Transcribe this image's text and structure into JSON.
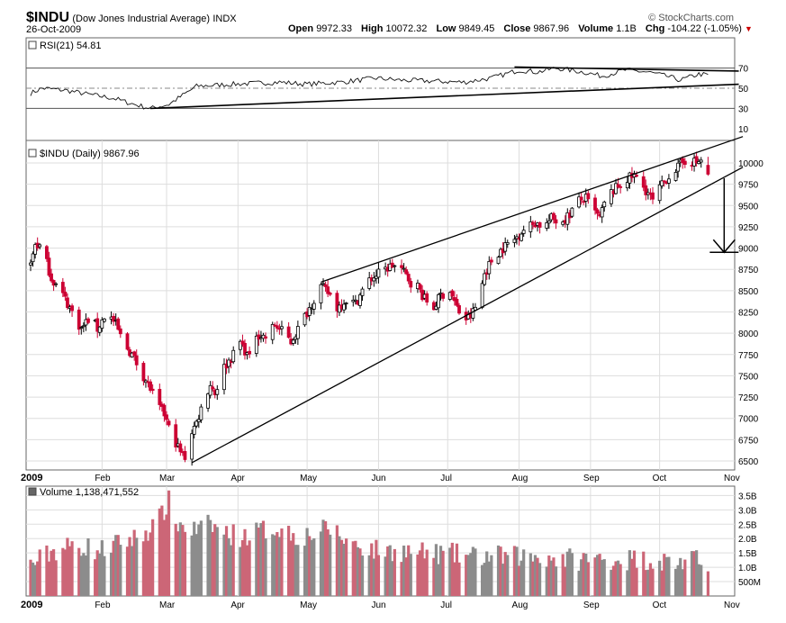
{
  "header": {
    "symbol": "$INDU",
    "name": "(Dow Jones Industrial Average)",
    "exchange": "INDX",
    "date": "26-Oct-2009",
    "brand": "© StockCharts.com",
    "open_label": "Open",
    "open": "9972.33",
    "high_label": "High",
    "high": "10072.32",
    "low_label": "Low",
    "low": "9849.45",
    "close_label": "Close",
    "close": "9867.96",
    "volume_label": "Volume",
    "volume": "1.1B",
    "chg_label": "Chg",
    "chg": "-104.22 (-1.05%)",
    "down_marker": "▼"
  },
  "colors": {
    "up": "#000000",
    "down": "#cc0033",
    "vol_up": "#8c8c8c",
    "vol_down": "#cc6677",
    "grid": "#dddddd",
    "frame": "#666666"
  },
  "chart_data": [
    {
      "type": "line",
      "panel": "rsi",
      "label": "RSI(21) 54.81",
      "ylim": [
        0,
        100
      ],
      "y_ticks": [
        10,
        30,
        50,
        70
      ],
      "reference_lines": [
        30,
        50,
        70
      ],
      "series": [
        {
          "name": "RSI(21)",
          "last": 54.81,
          "anchors": [
            [
              0,
              45
            ],
            [
              5,
              50
            ],
            [
              15,
              48
            ],
            [
              25,
              44
            ],
            [
              36,
              40
            ],
            [
              45,
              34
            ],
            [
              52,
              30
            ],
            [
              60,
              34
            ],
            [
              72,
              52
            ],
            [
              88,
              54
            ],
            [
              108,
              56
            ],
            [
              120,
              54
            ],
            [
              135,
              56
            ],
            [
              150,
              60
            ],
            [
              160,
              58
            ],
            [
              175,
              57
            ],
            [
              188,
              56
            ],
            [
              200,
              60
            ],
            [
              212,
              68
            ],
            [
              220,
              66
            ],
            [
              228,
              70
            ],
            [
              240,
              66
            ],
            [
              248,
              62
            ],
            [
              258,
              68
            ],
            [
              268,
              66
            ],
            [
              276,
              62
            ],
            [
              282,
              58
            ],
            [
              290,
              64
            ],
            [
              298,
              62
            ],
            [
              305,
              64
            ]
          ]
        }
      ],
      "trendlines": [
        {
          "from": [
            52,
            30
          ],
          "to": [
            305,
            54
          ]
        },
        {
          "from": [
            210,
            71
          ],
          "to": [
            305,
            67
          ]
        }
      ]
    },
    {
      "type": "candlestick",
      "panel": "price",
      "label": "$INDU (Daily) 9867.96",
      "ylim": [
        6400,
        10500
      ],
      "y_ticks": [
        6500,
        6750,
        7000,
        7250,
        7500,
        7750,
        8000,
        8250,
        8500,
        8750,
        9000,
        9250,
        9500,
        9750,
        10000
      ],
      "x_ticks": [
        {
          "label": "2009",
          "day": 0
        },
        {
          "label": "Feb",
          "day": 31
        },
        {
          "label": "Mar",
          "day": 59
        },
        {
          "label": "Apr",
          "day": 90
        },
        {
          "label": "May",
          "day": 120
        },
        {
          "label": "Jun",
          "day": 151
        },
        {
          "label": "Jul",
          "day": 181
        },
        {
          "label": "Aug",
          "day": 212
        },
        {
          "label": "Sep",
          "day": 243
        },
        {
          "label": "Oct",
          "day": 273
        },
        {
          "label": "Nov",
          "day": 304
        }
      ],
      "last": {
        "open": 9972.33,
        "high": 10072.32,
        "low": 9849.45,
        "close": 9867.96
      },
      "anchors": [
        [
          0,
          8800
        ],
        [
          2,
          9050
        ],
        [
          5,
          9000
        ],
        [
          9,
          8650
        ],
        [
          14,
          8450
        ],
        [
          18,
          8250
        ],
        [
          22,
          8050
        ],
        [
          26,
          8200
        ],
        [
          29,
          8050
        ],
        [
          33,
          8250
        ],
        [
          37,
          8100
        ],
        [
          40,
          7900
        ],
        [
          44,
          7750
        ],
        [
          48,
          7550
        ],
        [
          52,
          7350
        ],
        [
          55,
          7150
        ],
        [
          58,
          7050
        ],
        [
          61,
          6800
        ],
        [
          63,
          6720
        ],
        [
          65,
          6600
        ],
        [
          67,
          6547
        ],
        [
          69,
          6800
        ],
        [
          72,
          6950
        ],
        [
          75,
          7200
        ],
        [
          78,
          7400
        ],
        [
          80,
          7300
        ],
        [
          84,
          7600
        ],
        [
          88,
          7750
        ],
        [
          91,
          7900
        ],
        [
          95,
          7700
        ],
        [
          98,
          8000
        ],
        [
          102,
          7950
        ],
        [
          106,
          8100
        ],
        [
          110,
          8000
        ],
        [
          113,
          7900
        ],
        [
          117,
          8100
        ],
        [
          120,
          8250
        ],
        [
          123,
          8400
        ],
        [
          126,
          8550
        ],
        [
          130,
          8450
        ],
        [
          133,
          8300
        ],
        [
          137,
          8400
        ],
        [
          141,
          8350
        ],
        [
          146,
          8600
        ],
        [
          151,
          8700
        ],
        [
          154,
          8750
        ],
        [
          157,
          8800
        ],
        [
          161,
          8750
        ],
        [
          165,
          8600
        ],
        [
          168,
          8550
        ],
        [
          171,
          8400
        ],
        [
          175,
          8300
        ],
        [
          178,
          8450
        ],
        [
          182,
          8500
        ],
        [
          185,
          8300
        ],
        [
          188,
          8150
        ],
        [
          191,
          8200
        ],
        [
          194,
          8350
        ],
        [
          197,
          8700
        ],
        [
          200,
          8850
        ],
        [
          203,
          8950
        ],
        [
          207,
          9050
        ],
        [
          210,
          9100
        ],
        [
          213,
          9200
        ],
        [
          216,
          9250
        ],
        [
          219,
          9300
        ],
        [
          223,
          9250
        ],
        [
          226,
          9350
        ],
        [
          230,
          9300
        ],
        [
          234,
          9400
        ],
        [
          237,
          9550
        ],
        [
          241,
          9580
        ],
        [
          244,
          9450
        ],
        [
          247,
          9350
        ],
        [
          250,
          9600
        ],
        [
          254,
          9700
        ],
        [
          258,
          9800
        ],
        [
          262,
          9850
        ],
        [
          265,
          9750
        ],
        [
          268,
          9650
        ],
        [
          270,
          9550
        ],
        [
          273,
          9700
        ],
        [
          277,
          9850
        ],
        [
          281,
          9950
        ],
        [
          285,
          10050
        ],
        [
          289,
          10000
        ],
        [
          292,
          10050
        ],
        [
          294,
          9868
        ]
      ],
      "trendlines": [
        {
          "from": [
            70,
            6480
          ],
          "to": [
            306,
            9950
          ]
        },
        {
          "from": [
            126,
            8600
          ],
          "to": [
            306,
            10310
          ]
        }
      ],
      "target_arrow": {
        "from_price": 9820,
        "to_price": 8950,
        "day": 301
      }
    },
    {
      "type": "bar",
      "panel": "volume",
      "label": "Volume 1,138,471,552",
      "ylim": [
        0,
        3700000000
      ],
      "y_ticks": [
        {
          "label": "500M",
          "value": 500000000
        },
        {
          "label": "1.0B",
          "value": 1000000000
        },
        {
          "label": "1.5B",
          "value": 1500000000
        },
        {
          "label": "2.0B",
          "value": 2000000000
        },
        {
          "label": "2.5B",
          "value": 2500000000
        },
        {
          "label": "3.0B",
          "value": 3000000000
        },
        {
          "label": "3.5B",
          "value": 3500000000
        }
      ],
      "x_ticks": [
        "2009",
        "Feb",
        "Mar",
        "Apr",
        "May",
        "Jun",
        "Jul",
        "Aug",
        "Sep",
        "Oct",
        "Nov"
      ],
      "anchors": [
        [
          0,
          1.0
        ],
        [
          10,
          1.5
        ],
        [
          20,
          1.7
        ],
        [
          30,
          1.5
        ],
        [
          40,
          1.8
        ],
        [
          48,
          2.0
        ],
        [
          56,
          2.6
        ],
        [
          60,
          3.2
        ],
        [
          63,
          2.5
        ],
        [
          67,
          2.3
        ],
        [
          72,
          2.2
        ],
        [
          78,
          2.4
        ],
        [
          85,
          2.1
        ],
        [
          92,
          2.0
        ],
        [
          100,
          2.2
        ],
        [
          108,
          2.3
        ],
        [
          116,
          2.0
        ],
        [
          124,
          2.1
        ],
        [
          130,
          2.3
        ],
        [
          136,
          1.9
        ],
        [
          142,
          1.7
        ],
        [
          150,
          1.5
        ],
        [
          160,
          1.5
        ],
        [
          170,
          1.4
        ],
        [
          180,
          1.4
        ],
        [
          192,
          1.3
        ],
        [
          205,
          1.3
        ],
        [
          220,
          1.3
        ],
        [
          235,
          1.2
        ],
        [
          250,
          1.2
        ],
        [
          265,
          1.2
        ],
        [
          280,
          1.1
        ],
        [
          294,
          1.14
        ]
      ]
    }
  ]
}
